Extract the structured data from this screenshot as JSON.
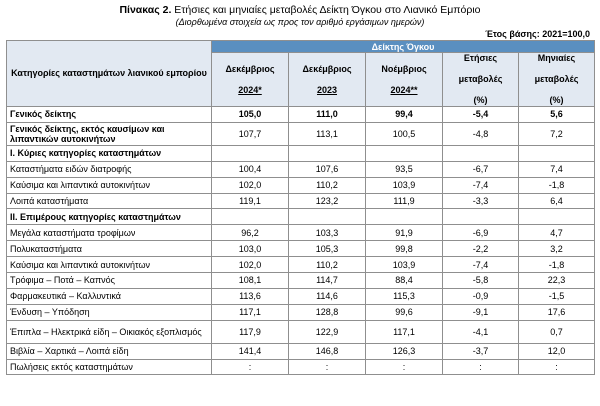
{
  "title": {
    "bold": "Πίνακας 2.",
    "rest": " Ετήσιες και μηνιαίες μεταβολές Δείκτη Όγκου στο Λιανικό Εμπόριο"
  },
  "subtitle": "(Διορθωμένα στοιχεία ως προς τον αριθμό εργάσιμων ημερών)",
  "base_year": "Έτος βάσης: 2021=100,0",
  "header": {
    "category": "Κατηγορίες καταστημάτων λιανικού εμπορίου",
    "index_group": "Δείκτης Όγκου",
    "col1_line1": "Δεκέμβριος",
    "col1_line2": "2024*",
    "col2_line1": "Δεκέμβριος",
    "col2_line2": "2023",
    "col3_line1": "Νοέμβριος",
    "col3_line2": "2024**",
    "col4_line1": "Ετήσιες",
    "col4_line2": "μεταβολές",
    "col4_line3": "(%)",
    "col5_line1": "Μηνιαίες",
    "col5_line2": "μεταβολές",
    "col5_line3": "(%)"
  },
  "rows": [
    {
      "label": "Γενικός δείκτης",
      "v": [
        "105,0",
        "111,0",
        "99,4",
        "-5,4",
        "5,6"
      ]
    },
    {
      "label": "Γενικός δείκτης, εκτός καυσίμων και λιπαντικών αυτοκινήτων",
      "v": [
        "107,7",
        "113,1",
        "100,5",
        "-4,8",
        "7,2"
      ]
    },
    {
      "label": "I. Κύριες κατηγορίες καταστημάτων",
      "v": [
        "",
        "",
        "",
        "",
        ""
      ]
    },
    {
      "label": "Καταστήματα ειδών διατροφής",
      "v": [
        "100,4",
        "107,6",
        "93,5",
        "-6,7",
        "7,4"
      ]
    },
    {
      "label": "Καύσιμα και λιπαντικά αυτοκινήτων",
      "v": [
        "102,0",
        "110,2",
        "103,9",
        "-7,4",
        "-1,8"
      ]
    },
    {
      "label": "Λοιπά καταστήματα",
      "v": [
        "119,1",
        "123,2",
        "111,9",
        "-3,3",
        "6,4"
      ]
    },
    {
      "label": "II. Επιμέρους κατηγορίες καταστημάτων",
      "v": [
        "",
        "",
        "",
        "",
        ""
      ]
    },
    {
      "label": "Μεγάλα καταστήματα τροφίμων",
      "v": [
        "96,2",
        "103,3",
        "91,9",
        "-6,9",
        "4,7"
      ]
    },
    {
      "label": "Πολυκαταστήματα",
      "v": [
        "103,0",
        "105,3",
        "99,8",
        "-2,2",
        "3,2"
      ]
    },
    {
      "label": "Καύσιμα και λιπαντικά αυτοκινήτων",
      "v": [
        "102,0",
        "110,2",
        "103,9",
        "-7,4",
        "-1,8"
      ]
    },
    {
      "label": "Τρόφιμα – Ποτά – Καπνός",
      "v": [
        "108,1",
        "114,7",
        "88,4",
        "-5,8",
        "22,3"
      ]
    },
    {
      "label": "Φαρμακευτικά – Καλλυντικά",
      "v": [
        "113,6",
        "114,6",
        "115,3",
        "-0,9",
        "-1,5"
      ]
    },
    {
      "label": "Ένδυση – Υπόδηση",
      "v": [
        "117,1",
        "128,8",
        "99,6",
        "-9,1",
        "17,6"
      ]
    },
    {
      "label": "Έπιπλα – Ηλεκτρικά είδη – Οικιακός εξοπλισμός",
      "v": [
        "117,9",
        "122,9",
        "117,1",
        "-4,1",
        "0,7"
      ]
    },
    {
      "label": "Βιβλία – Χαρτικά – Λοιπά είδη",
      "v": [
        "141,4",
        "146,8",
        "126,3",
        "-3,7",
        "12,0"
      ]
    },
    {
      "label": "Πωλήσεις εκτός καταστημάτων",
      "v": [
        ":",
        ":",
        ":",
        ":",
        ":"
      ]
    }
  ]
}
